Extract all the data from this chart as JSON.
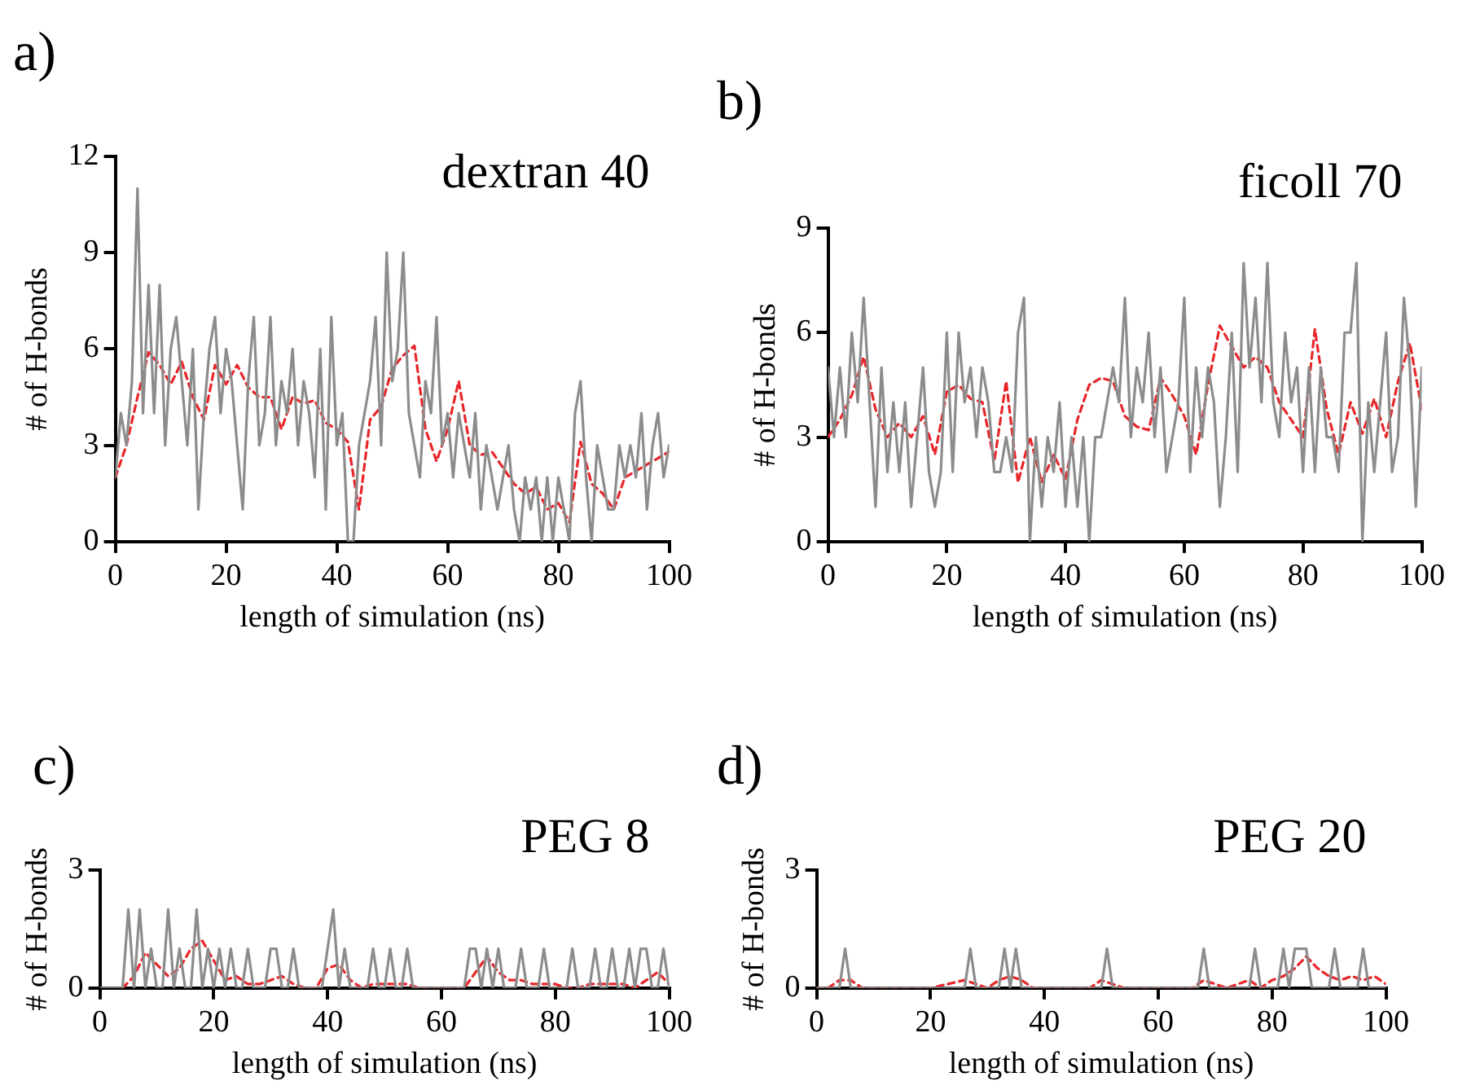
{
  "chart_data": [
    {
      "type": "line",
      "title": "dextran 40",
      "xlabel": "length of simulation (ns)",
      "ylabel": "# of H-bonds",
      "annotations": [
        "a)"
      ],
      "xlim": [
        0,
        100
      ],
      "xticks": [
        0,
        20,
        40,
        60,
        80,
        100
      ],
      "ylim": [
        0,
        12
      ],
      "yticks": [
        0,
        3,
        6,
        9,
        12
      ],
      "grid": false,
      "legend": false,
      "marker": "none",
      "series": [
        {
          "color": "#8c8c8c",
          "line_style": "solid",
          "x": [
            0,
            1,
            2,
            3,
            4,
            5,
            6,
            7,
            8,
            9,
            10,
            11,
            12,
            13,
            14,
            15,
            16,
            17,
            18,
            19,
            20,
            21,
            22,
            23,
            24,
            25,
            26,
            27,
            28,
            29,
            30,
            31,
            32,
            33,
            34,
            35,
            36,
            37,
            38,
            39,
            40,
            41,
            42,
            43,
            44,
            45,
            46,
            47,
            48,
            49,
            50,
            51,
            52,
            53,
            54,
            55,
            56,
            57,
            58,
            59,
            60,
            61,
            62,
            63,
            64,
            65,
            66,
            67,
            68,
            69,
            70,
            71,
            72,
            73,
            74,
            75,
            76,
            77,
            78,
            79,
            80,
            81,
            82,
            83,
            84,
            85,
            86,
            87,
            88,
            89,
            90,
            91,
            92,
            93,
            94,
            95,
            96,
            97,
            98,
            99,
            100
          ],
          "values": [
            2,
            4,
            3,
            5,
            11,
            4,
            8,
            4,
            8,
            3,
            6,
            7,
            5,
            3,
            6,
            1,
            4,
            6,
            7,
            4,
            6,
            5,
            3,
            1,
            5,
            7,
            3,
            4,
            7,
            3,
            5,
            4,
            6,
            3,
            5,
            4,
            2,
            6,
            1,
            7,
            3,
            4,
            0,
            0,
            3,
            4,
            5,
            7,
            3,
            9,
            5,
            6,
            9,
            4,
            3,
            2,
            5,
            4,
            7,
            3,
            4,
            2,
            4,
            3,
            2,
            4,
            1,
            3,
            2,
            1,
            2,
            3,
            1,
            0,
            2,
            1,
            2,
            0,
            2,
            0,
            2,
            1,
            0,
            4,
            5,
            2,
            0,
            3,
            2,
            1,
            1,
            3,
            2,
            3,
            2,
            4,
            1,
            3,
            4,
            2,
            3
          ]
        },
        {
          "color": "#e8262a",
          "line_style": "dashed",
          "x": [
            0,
            2,
            4,
            6,
            8,
            10,
            12,
            14,
            16,
            18,
            20,
            22,
            24,
            26,
            28,
            30,
            32,
            34,
            36,
            38,
            40,
            42,
            44,
            46,
            48,
            50,
            52,
            54,
            56,
            58,
            60,
            62,
            64,
            66,
            68,
            70,
            72,
            74,
            76,
            78,
            80,
            82,
            84,
            86,
            88,
            90,
            92,
            94,
            96,
            98,
            100
          ],
          "values": [
            2,
            3,
            4.5,
            5.9,
            5.5,
            4.9,
            5.6,
            4.5,
            3.8,
            5.5,
            4.9,
            5.5,
            4.8,
            4.5,
            4.5,
            3.5,
            4.5,
            4.3,
            4.4,
            3.7,
            3.5,
            3.1,
            1,
            3.8,
            4.2,
            5.4,
            5.8,
            6.1,
            3.5,
            2.5,
            3.5,
            5,
            3,
            2.7,
            2.8,
            2.3,
            1.8,
            1.5,
            1.7,
            1,
            1.2,
            0.6,
            3.1,
            1.8,
            1.5,
            1,
            2,
            2.2,
            2.4,
            2.6,
            2.8
          ]
        }
      ]
    },
    {
      "type": "line",
      "title": "ficoll 70",
      "xlabel": "length of simulation (ns)",
      "ylabel": "# of H-bonds",
      "annotations": [
        "b)"
      ],
      "xlim": [
        0,
        100
      ],
      "xticks": [
        0,
        20,
        40,
        60,
        80,
        100
      ],
      "ylim": [
        0,
        9
      ],
      "yticks": [
        0,
        3,
        6,
        9
      ],
      "grid": false,
      "legend": false,
      "marker": "none",
      "series": [
        {
          "color": "#8c8c8c",
          "line_style": "solid",
          "x": [
            0,
            1,
            2,
            3,
            4,
            5,
            6,
            7,
            8,
            9,
            10,
            11,
            12,
            13,
            14,
            15,
            16,
            17,
            18,
            19,
            20,
            21,
            22,
            23,
            24,
            25,
            26,
            27,
            28,
            29,
            30,
            31,
            32,
            33,
            34,
            35,
            36,
            37,
            38,
            39,
            40,
            41,
            42,
            43,
            44,
            45,
            46,
            47,
            48,
            49,
            50,
            51,
            52,
            53,
            54,
            55,
            56,
            57,
            58,
            59,
            60,
            61,
            62,
            63,
            64,
            65,
            66,
            67,
            68,
            69,
            70,
            71,
            72,
            73,
            74,
            75,
            76,
            77,
            78,
            79,
            80,
            81,
            82,
            83,
            84,
            85,
            86,
            87,
            88,
            89,
            90,
            91,
            92,
            93,
            94,
            95,
            96,
            97,
            98,
            99,
            100
          ],
          "values": [
            5,
            3,
            5,
            3,
            6,
            4,
            7,
            4,
            1,
            5,
            2,
            4,
            2,
            4,
            1,
            3,
            5,
            2,
            1,
            2,
            6,
            2,
            6,
            4,
            5,
            3,
            5,
            4,
            2,
            2,
            3,
            2,
            6,
            7,
            0,
            3,
            1,
            3,
            2,
            4,
            1,
            3,
            1,
            3,
            0,
            3,
            3,
            4,
            5,
            4,
            7,
            3,
            5,
            4,
            6,
            3,
            5,
            2,
            3,
            4,
            7,
            2,
            5,
            3,
            5,
            4,
            1,
            3,
            6,
            2,
            8,
            5,
            7,
            4,
            8,
            4,
            3,
            6,
            4,
            5,
            2,
            5,
            2,
            5,
            3,
            3,
            2,
            6,
            6,
            8,
            0,
            4,
            2,
            4,
            6,
            2,
            3,
            7,
            5,
            1,
            5
          ]
        },
        {
          "color": "#e8262a",
          "line_style": "dashed",
          "x": [
            0,
            2,
            4,
            6,
            8,
            10,
            12,
            14,
            16,
            18,
            20,
            22,
            24,
            26,
            28,
            30,
            32,
            34,
            36,
            38,
            40,
            42,
            44,
            46,
            48,
            50,
            52,
            54,
            56,
            58,
            60,
            62,
            64,
            66,
            68,
            70,
            72,
            74,
            76,
            78,
            80,
            82,
            84,
            86,
            88,
            90,
            92,
            94,
            96,
            98,
            100
          ],
          "values": [
            3,
            3.5,
            4.2,
            5.3,
            3.8,
            3,
            3.4,
            3,
            3.6,
            2.5,
            4.3,
            4.5,
            4.1,
            4,
            2.3,
            4.6,
            1.7,
            3,
            1.7,
            2.5,
            1.8,
            3.5,
            4.5,
            4.7,
            4.6,
            3.6,
            3.3,
            3.2,
            4.7,
            4.2,
            3.6,
            2.5,
            4.5,
            6.2,
            5.6,
            5,
            5.3,
            5,
            4,
            3.5,
            3,
            6.1,
            3.8,
            2.5,
            4,
            3.1,
            4.1,
            3,
            4.6,
            5.7,
            3.8
          ]
        }
      ]
    },
    {
      "type": "line",
      "title": "PEG 8",
      "xlabel": "length of simulation (ns)",
      "ylabel": "# of H-bonds",
      "annotations": [
        "c)"
      ],
      "xlim": [
        0,
        100
      ],
      "xticks": [
        0,
        20,
        40,
        60,
        80,
        100
      ],
      "ylim": [
        0,
        3
      ],
      "yticks": [
        0,
        3
      ],
      "grid": false,
      "legend": false,
      "marker": "none",
      "series": [
        {
          "color": "#8c8c8c",
          "line_style": "solid",
          "x": [
            0,
            1,
            2,
            3,
            4,
            5,
            6,
            7,
            8,
            9,
            10,
            11,
            12,
            13,
            14,
            15,
            16,
            17,
            18,
            19,
            20,
            21,
            22,
            23,
            24,
            25,
            26,
            27,
            28,
            29,
            30,
            31,
            32,
            33,
            34,
            35,
            36,
            37,
            38,
            39,
            40,
            41,
            42,
            43,
            44,
            45,
            46,
            47,
            48,
            49,
            50,
            51,
            52,
            53,
            54,
            55,
            56,
            57,
            58,
            59,
            60,
            61,
            62,
            63,
            64,
            65,
            66,
            67,
            68,
            69,
            70,
            71,
            72,
            73,
            74,
            75,
            76,
            77,
            78,
            79,
            80,
            81,
            82,
            83,
            84,
            85,
            86,
            87,
            88,
            89,
            90,
            91,
            92,
            93,
            94,
            95,
            96,
            97,
            98,
            99,
            100
          ],
          "values": [
            0,
            0,
            0,
            0,
            0,
            2,
            0,
            2,
            0,
            1,
            0,
            0,
            2,
            0,
            1,
            0,
            0,
            2,
            0,
            1,
            0,
            1,
            0,
            1,
            0,
            0,
            1,
            0,
            0,
            0,
            1,
            1,
            0,
            0,
            1,
            0,
            0,
            0,
            0,
            0,
            1,
            2,
            0,
            1,
            0,
            0,
            0,
            0,
            1,
            0,
            0,
            1,
            0,
            0,
            1,
            0,
            0,
            0,
            0,
            0,
            0,
            0,
            0,
            0,
            0,
            1,
            1,
            0,
            1,
            0,
            1,
            0,
            0,
            0,
            1,
            0,
            0,
            0,
            1,
            0,
            0,
            0,
            0,
            1,
            0,
            0,
            0,
            1,
            0,
            0,
            1,
            0,
            0,
            1,
            0,
            1,
            1,
            0,
            0,
            1,
            0
          ]
        },
        {
          "color": "#e8262a",
          "line_style": "dashed",
          "x": [
            4,
            6,
            8,
            10,
            12,
            14,
            16,
            18,
            20,
            22,
            24,
            26,
            28,
            30,
            32,
            34,
            36,
            38,
            40,
            42,
            44,
            46,
            48,
            50,
            52,
            54,
            56,
            58,
            60,
            62,
            64,
            66,
            68,
            70,
            72,
            74,
            76,
            78,
            80,
            82,
            84,
            86,
            88,
            90,
            92,
            94,
            96,
            98,
            100
          ],
          "values": [
            0,
            0.3,
            0.9,
            0.6,
            0.3,
            0.5,
            1,
            1.2,
            0.7,
            0.2,
            0.3,
            0.1,
            0.1,
            0.2,
            0.3,
            0.1,
            0,
            0,
            0.5,
            0.6,
            0.2,
            0,
            0.1,
            0.1,
            0.1,
            0.1,
            0,
            0,
            0,
            0,
            0,
            0.4,
            0.8,
            0.4,
            0.2,
            0.2,
            0.1,
            0.1,
            0.1,
            0,
            0,
            0.1,
            0.1,
            0.1,
            0.1,
            0,
            0.2,
            0.4,
            0.1
          ]
        }
      ]
    },
    {
      "type": "line",
      "title": "PEG 20",
      "xlabel": "length of simulation (ns)",
      "ylabel": "# of H-bonds",
      "annotations": [
        "d)"
      ],
      "xlim": [
        0,
        100
      ],
      "xticks": [
        0,
        20,
        40,
        60,
        80,
        100
      ],
      "ylim": [
        0,
        3
      ],
      "yticks": [
        0,
        3
      ],
      "grid": false,
      "legend": false,
      "marker": "none",
      "series": [
        {
          "color": "#8c8c8c",
          "line_style": "solid",
          "x": [
            0,
            1,
            2,
            3,
            4,
            5,
            6,
            7,
            8,
            9,
            10,
            11,
            12,
            13,
            14,
            15,
            16,
            17,
            18,
            19,
            20,
            21,
            22,
            23,
            24,
            25,
            26,
            27,
            28,
            29,
            30,
            31,
            32,
            33,
            34,
            35,
            36,
            37,
            38,
            39,
            40,
            41,
            42,
            43,
            44,
            45,
            46,
            47,
            48,
            49,
            50,
            51,
            52,
            53,
            54,
            55,
            56,
            57,
            58,
            59,
            60,
            61,
            62,
            63,
            64,
            65,
            66,
            67,
            68,
            69,
            70,
            71,
            72,
            73,
            74,
            75,
            76,
            77,
            78,
            79,
            80,
            81,
            82,
            83,
            84,
            85,
            86,
            87,
            88,
            89,
            90,
            91,
            92,
            93,
            94,
            95,
            96,
            97,
            98,
            99,
            100
          ],
          "values": [
            0,
            0,
            0,
            0,
            0,
            1,
            0,
            0,
            0,
            0,
            0,
            0,
            0,
            0,
            0,
            0,
            0,
            0,
            0,
            0,
            0,
            0,
            0,
            0,
            0,
            0,
            0,
            1,
            0,
            0,
            0,
            0,
            0,
            1,
            0,
            1,
            0,
            0,
            0,
            0,
            0,
            0,
            0,
            0,
            0,
            0,
            0,
            0,
            0,
            0,
            0,
            1,
            0,
            0,
            0,
            0,
            0,
            0,
            0,
            0,
            0,
            0,
            0,
            0,
            0,
            0,
            0,
            0,
            1,
            0,
            0,
            0,
            0,
            0,
            0,
            0,
            0,
            1,
            0,
            0,
            0,
            0,
            1,
            0,
            1,
            1,
            1,
            0,
            0,
            0,
            0,
            1,
            0,
            0,
            0,
            0,
            1,
            0,
            0,
            0,
            0
          ]
        },
        {
          "color": "#e8262a",
          "line_style": "dashed",
          "x": [
            0,
            2,
            4,
            6,
            8,
            10,
            20,
            26,
            28,
            30,
            32,
            34,
            36,
            38,
            48,
            50,
            52,
            54,
            66,
            68,
            70,
            72,
            76,
            78,
            80,
            82,
            84,
            86,
            88,
            90,
            92,
            94,
            96,
            98,
            100
          ],
          "values": [
            0,
            0,
            0.2,
            0.2,
            0,
            0,
            0,
            0.2,
            0.1,
            0,
            0.2,
            0.3,
            0.2,
            0,
            0,
            0.2,
            0.1,
            0,
            0,
            0.2,
            0.1,
            0,
            0.2,
            0,
            0.2,
            0.3,
            0.5,
            0.8,
            0.5,
            0.3,
            0.2,
            0.3,
            0.2,
            0.3,
            0.1
          ]
        }
      ]
    }
  ]
}
